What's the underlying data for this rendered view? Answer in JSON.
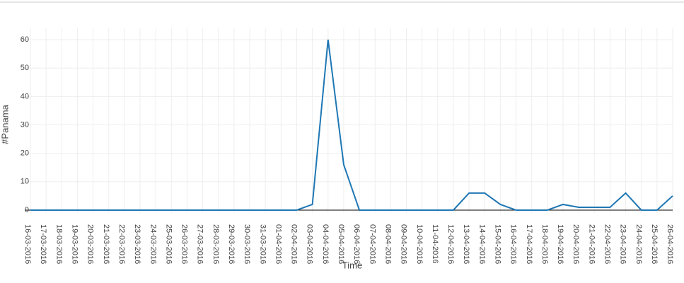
{
  "chart_data": {
    "type": "line",
    "x_label": "Time",
    "y_label": "#Panama",
    "categories": [
      "16-03-2016",
      "17-03-2016",
      "18-03-2016",
      "19-03-2016",
      "20-03-2016",
      "21-03-2016",
      "22-03-2016",
      "23-03-2016",
      "24-03-2016",
      "25-03-2016",
      "26-03-2016",
      "27-03-2016",
      "28-03-2016",
      "29-03-2016",
      "30-03-2016",
      "31-03-2016",
      "01-04-2016",
      "02-04-2016",
      "03-04-2016",
      "04-04-2016",
      "05-04-2016",
      "06-04-2016",
      "07-04-2016",
      "08-04-2016",
      "09-04-2016",
      "10-04-2016",
      "11-04-2016",
      "12-04-2016",
      "13-04-2016",
      "14-04-2016",
      "15-04-2016",
      "16-04-2016",
      "17-04-2016",
      "18-04-2016",
      "19-04-2016",
      "20-04-2016",
      "21-04-2016",
      "22-04-2016",
      "23-04-2016",
      "24-04-2016",
      "25-04-2016",
      "26-04-2016"
    ],
    "values": [
      0,
      0,
      0,
      0,
      0,
      0,
      0,
      0,
      0,
      0,
      0,
      0,
      0,
      0,
      0,
      0,
      0,
      0,
      2,
      60,
      16,
      0,
      0,
      0,
      0,
      0,
      0,
      0,
      6,
      6,
      2,
      0,
      0,
      0,
      2,
      1,
      1,
      1,
      6,
      0,
      0,
      5
    ],
    "color": "#1f77b4",
    "ylim": [
      -1,
      64
    ],
    "yticks": [
      0,
      10,
      20,
      30,
      40,
      50,
      60
    ],
    "grid": true
  }
}
